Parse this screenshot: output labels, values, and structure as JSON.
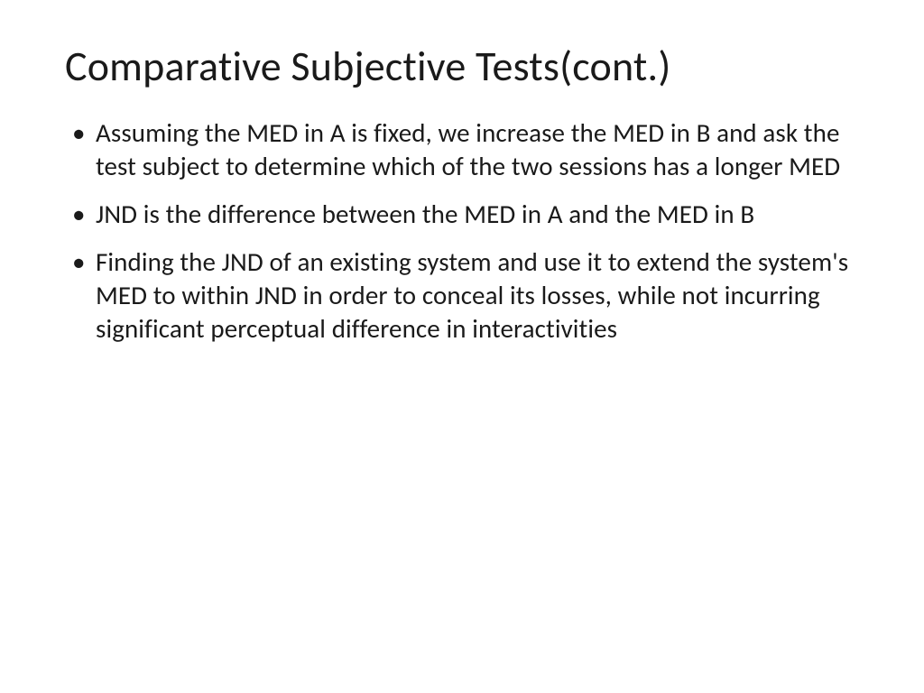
{
  "slide": {
    "title": "Comparative Subjective Tests(cont.)",
    "bullets": [
      "Assuming the MED in A is fixed, we increase the MED in B and ask the test subject to determine which of the two sessions has a longer MED",
      "JND is the difference between the MED in A and the MED in B",
      "Finding the JND of an existing system and use it to extend the system's MED to within JND in order to conceal its losses, while not incurring significant perceptual difference in interactivities"
    ]
  },
  "styling": {
    "background_color": "#ffffff",
    "text_color": "#1a1a1a",
    "title_fontsize": 46,
    "title_fontweight": 400,
    "body_fontsize": 29,
    "font_family": "Calibri",
    "bullet_char": "•",
    "line_height": 1.28
  }
}
